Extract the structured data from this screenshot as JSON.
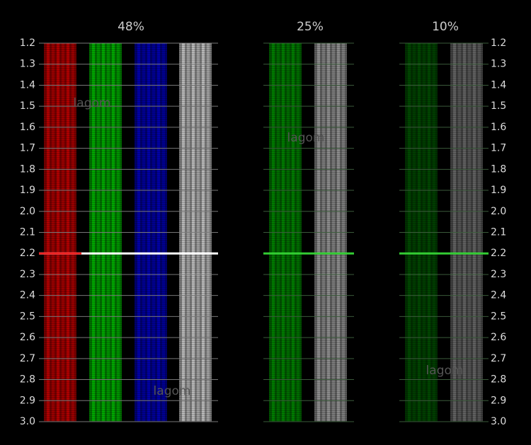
{
  "headers": [
    "48%",
    "25%",
    "10%"
  ],
  "scale": [
    "1.2",
    "1.3",
    "1.4",
    "1.5",
    "1.6",
    "1.7",
    "1.8",
    "1.9",
    "2.0",
    "2.1",
    "2.2",
    "2.3",
    "2.4",
    "2.5",
    "2.6",
    "2.7",
    "2.8",
    "2.9",
    "3.0"
  ],
  "watermarks": [
    "lagom",
    "lagom",
    "lagom",
    "lagom"
  ]
}
